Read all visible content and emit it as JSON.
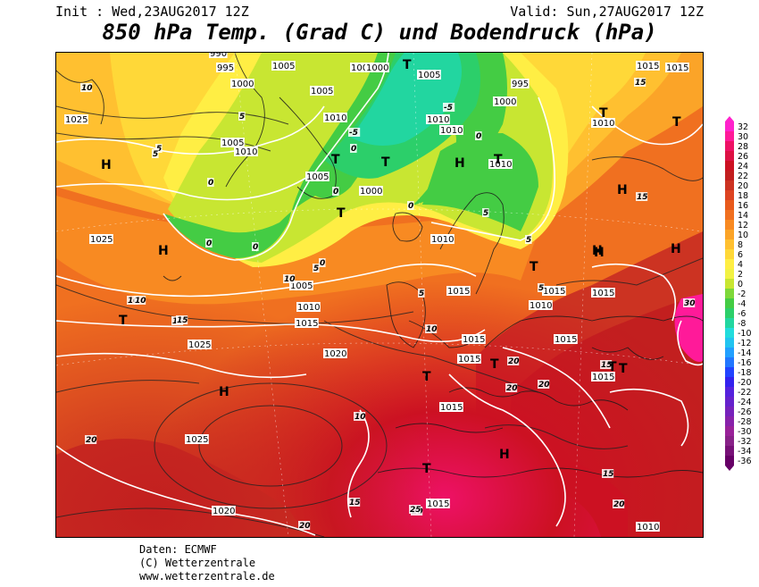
{
  "header": {
    "init": "Init : Wed,23AUG2017 12Z",
    "valid": "Valid: Sun,27AUG2017 12Z",
    "title": "850 hPa Temp. (Grad C) und Bodendruck (hPa)"
  },
  "footer": {
    "data": "Daten: ECMWF",
    "copyright": "(C) Wetterzentrale",
    "url": "www.wetterzentrale.de"
  },
  "legend": {
    "levels": [
      {
        "label": "32",
        "color": "#ff22cc"
      },
      {
        "label": "30",
        "color": "#ff1a99"
      },
      {
        "label": "28",
        "color": "#ee1166"
      },
      {
        "label": "26",
        "color": "#dd1144"
      },
      {
        "label": "24",
        "color": "#cc1122"
      },
      {
        "label": "22",
        "color": "#c21f1f"
      },
      {
        "label": "20",
        "color": "#cc3322"
      },
      {
        "label": "18",
        "color": "#dd4422"
      },
      {
        "label": "16",
        "color": "#e85a1c"
      },
      {
        "label": "14",
        "color": "#f07020"
      },
      {
        "label": "12",
        "color": "#f88a22"
      },
      {
        "label": "10",
        "color": "#fba428"
      },
      {
        "label": "8",
        "color": "#ffc030"
      },
      {
        "label": "6",
        "color": "#ffd838"
      },
      {
        "label": "4",
        "color": "#ffee44"
      },
      {
        "label": "2",
        "color": "#f2f244"
      },
      {
        "label": "0",
        "color": "#c8e632"
      },
      {
        "label": "-2",
        "color": "#7ed83a"
      },
      {
        "label": "-4",
        "color": "#44cc44"
      },
      {
        "label": "-6",
        "color": "#2ccf6a"
      },
      {
        "label": "-8",
        "color": "#22d6a0"
      },
      {
        "label": "-10",
        "color": "#22dcdc"
      },
      {
        "label": "-12",
        "color": "#22c4f0"
      },
      {
        "label": "-14",
        "color": "#22a0ff"
      },
      {
        "label": "-16",
        "color": "#2277ff"
      },
      {
        "label": "-18",
        "color": "#2244ff"
      },
      {
        "label": "-20",
        "color": "#3322ee"
      },
      {
        "label": "-22",
        "color": "#5522dd"
      },
      {
        "label": "-24",
        "color": "#6622cc"
      },
      {
        "label": "-26",
        "color": "#7722bb"
      },
      {
        "label": "-28",
        "color": "#8822aa"
      },
      {
        "label": "-30",
        "color": "#992299"
      },
      {
        "label": "-32",
        "color": "#882288"
      },
      {
        "label": "-34",
        "color": "#771177"
      },
      {
        "label": "-36",
        "color": "#660066"
      }
    ]
  },
  "map": {
    "pressure_labels": [
      "990",
      "995",
      "1000",
      "1005",
      "1000",
      "1005",
      "1000",
      "995",
      "1000",
      "1015",
      "1005",
      "1010",
      "1010",
      "1025",
      "1010",
      "1010",
      "1005",
      "1000",
      "1010",
      "1010",
      "1005",
      "1025",
      "1010",
      "1015",
      "1005",
      "1010",
      "1015",
      "1015",
      "1010",
      "1015",
      "1025",
      "1015",
      "1015",
      "1020",
      "1015",
      "1015",
      "1025",
      "1015",
      "1020",
      "1015",
      "1010",
      "1015"
    ],
    "temp_labels": [
      "10",
      "10",
      "15",
      "5",
      "5",
      "0",
      "0",
      "0",
      "0",
      "5",
      "5",
      "0",
      "0",
      "0",
      "0",
      "-5",
      "-5",
      "5",
      "5",
      "5",
      "5",
      "10",
      "10",
      "10",
      "15",
      "15",
      "10",
      "20",
      "20",
      "15",
      "20",
      "15",
      "15",
      "20",
      "20",
      "15",
      "20",
      "20",
      "25",
      "30"
    ],
    "pressure_centers": [
      "H",
      "H",
      "H",
      "H",
      "H",
      "H",
      "H",
      "H",
      "H"
    ],
    "trough_markers": [
      "T",
      "T",
      "T",
      "T",
      "T",
      "T",
      "T",
      "T",
      "T",
      "T",
      "T",
      "T",
      "T",
      "T"
    ]
  }
}
